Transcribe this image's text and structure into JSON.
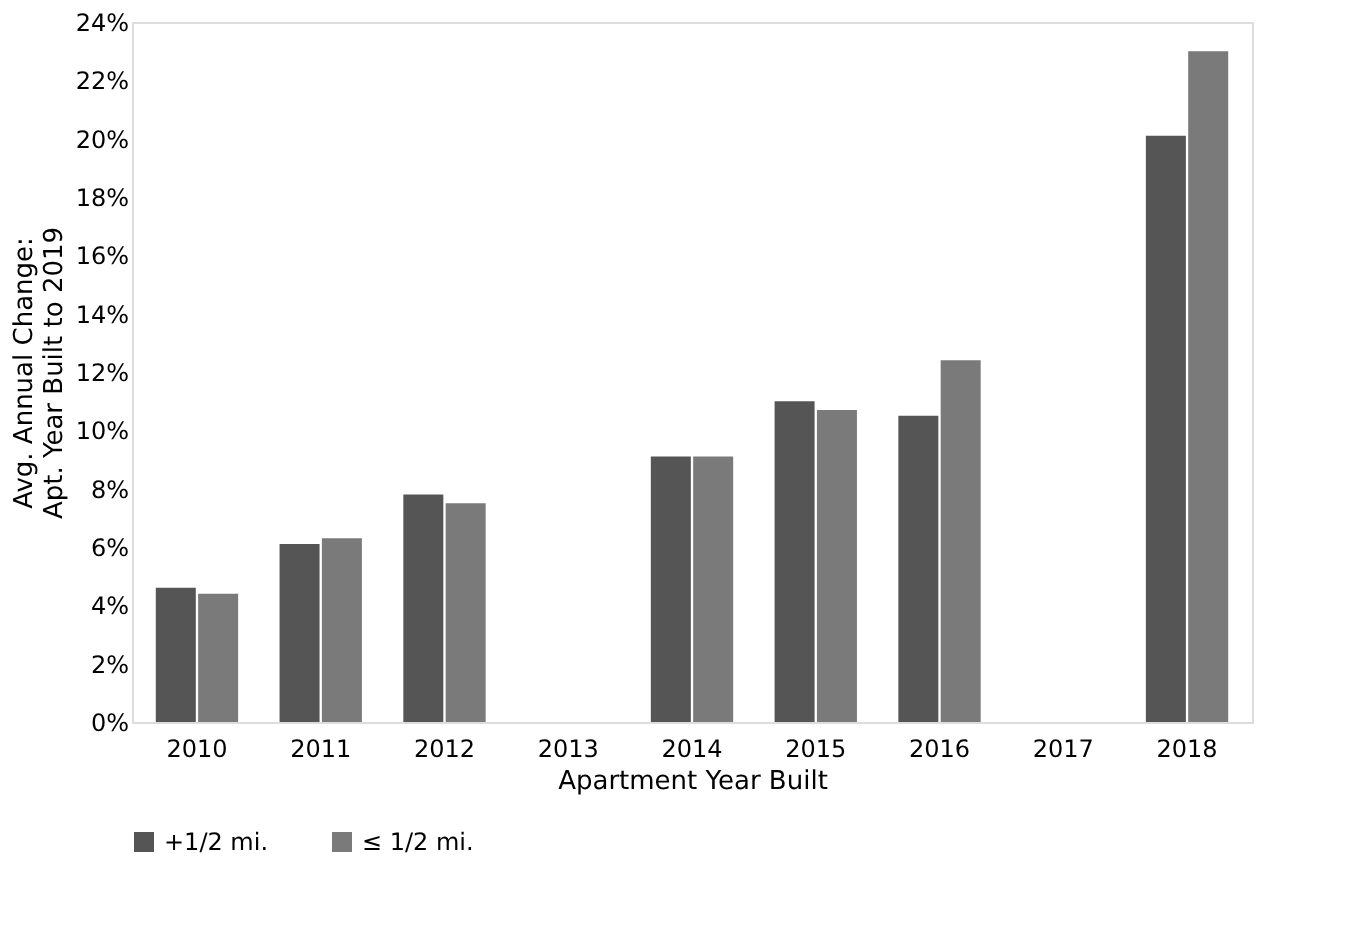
{
  "chart_data": {
    "type": "bar",
    "xlabel": "Apartment Year Built",
    "ylabel": "Avg. Annual Change:\nApt. Year Built to 2019",
    "categories": [
      "2010",
      "2011",
      "2012",
      "2013",
      "2014",
      "2015",
      "2016",
      "2017",
      "2018"
    ],
    "series": [
      {
        "name": "+1/2 mi.",
        "color": "#555555",
        "values": [
          4.6,
          6.1,
          7.8,
          null,
          9.1,
          11.0,
          10.5,
          null,
          20.1
        ]
      },
      {
        "name": "≤ 1/2 mi.",
        "color": "#7a7a7a",
        "values": [
          4.4,
          6.3,
          7.5,
          null,
          9.1,
          10.7,
          12.4,
          null,
          23.0
        ]
      }
    ],
    "ylim": [
      0,
      24
    ],
    "yticks": [
      {
        "value": 0,
        "label": "0%"
      },
      {
        "value": 2,
        "label": "2%"
      },
      {
        "value": 4,
        "label": "4%"
      },
      {
        "value": 6,
        "label": "6%"
      },
      {
        "value": 8,
        "label": "8%"
      },
      {
        "value": 10,
        "label": "10%"
      },
      {
        "value": 12,
        "label": "12%"
      },
      {
        "value": 14,
        "label": "14%"
      },
      {
        "value": 16,
        "label": "16%"
      },
      {
        "value": 18,
        "label": "18%"
      },
      {
        "value": 20,
        "label": "20%"
      },
      {
        "value": 22,
        "label": "22%"
      },
      {
        "value": 24,
        "label": "24%"
      }
    ],
    "grid": false,
    "legend": "bottom"
  }
}
